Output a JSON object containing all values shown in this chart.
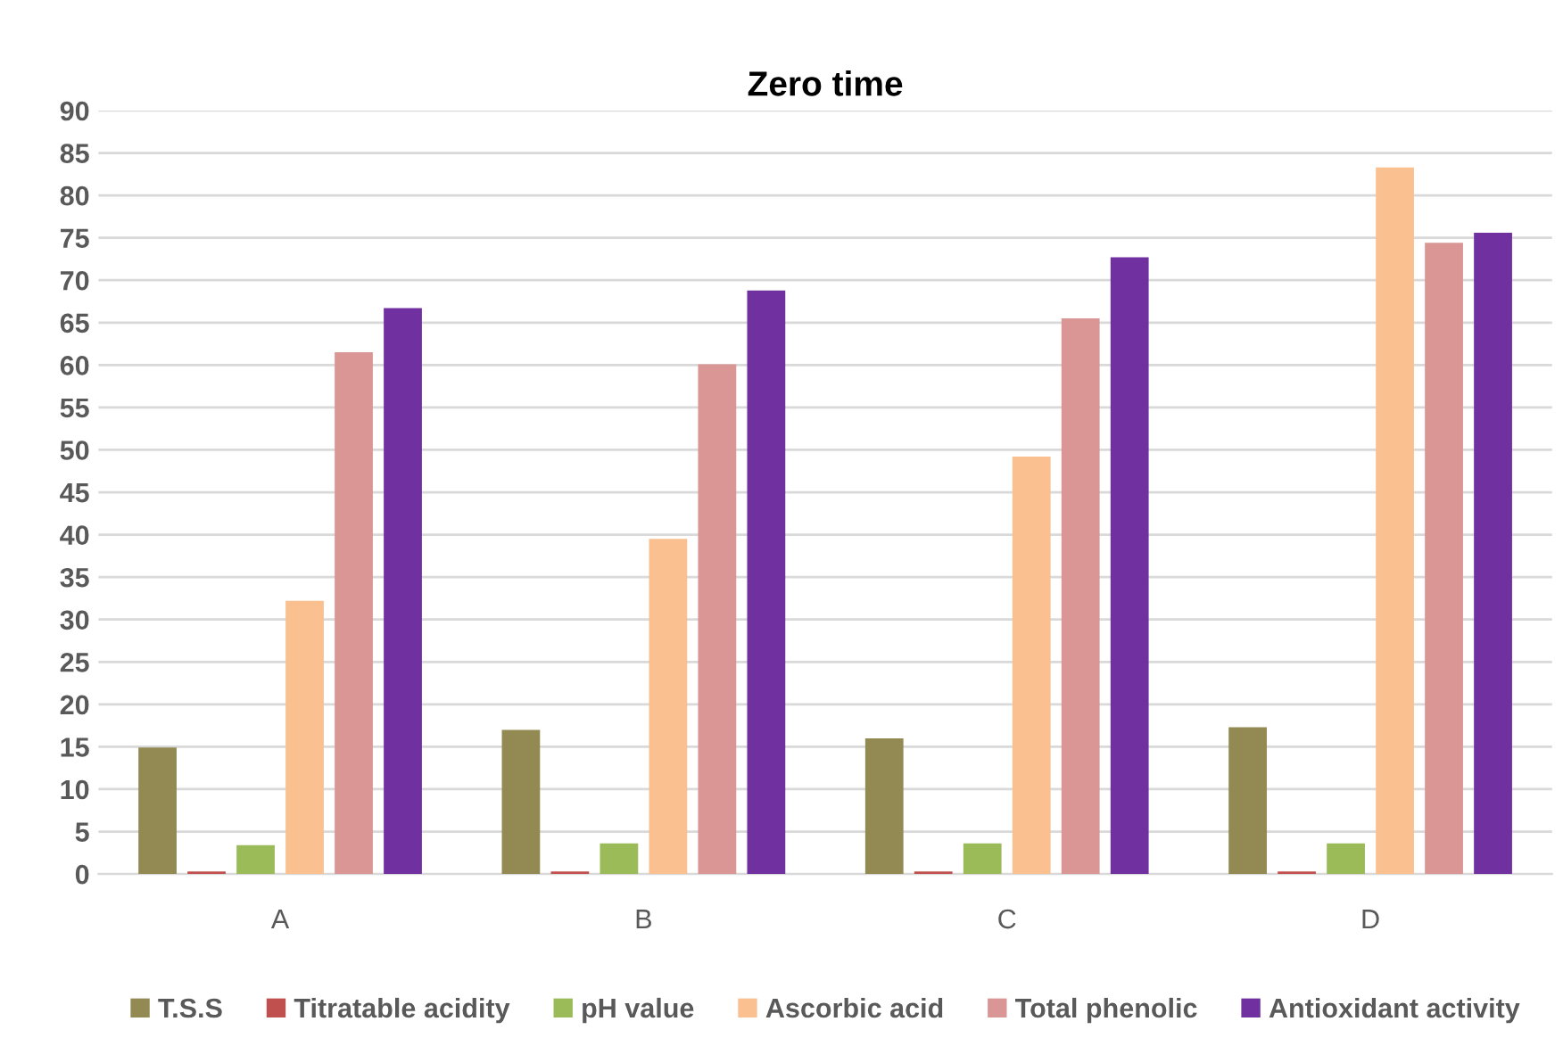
{
  "chart_data": {
    "type": "bar",
    "title": "Zero time",
    "categories": [
      "A",
      "B",
      "C",
      "D"
    ],
    "series": [
      {
        "name": "T.S.S",
        "color": "#938953",
        "values": [
          14.9,
          17.0,
          16.0,
          17.3
        ]
      },
      {
        "name": "Titratable acidity",
        "color": "#c0504d",
        "values": [
          0.3,
          0.3,
          0.3,
          0.3
        ]
      },
      {
        "name": "pH value",
        "color": "#9bbb59",
        "values": [
          3.4,
          3.6,
          3.6,
          3.6
        ]
      },
      {
        "name": "Ascorbic acid",
        "color": "#fac090",
        "values": [
          32.2,
          39.5,
          49.2,
          83.3
        ]
      },
      {
        "name": "Total phenolic",
        "color": "#d99694",
        "values": [
          61.5,
          60.1,
          65.5,
          74.4
        ]
      },
      {
        "name": "Antioxidant activity",
        "color": "#7030a0",
        "values": [
          66.7,
          68.8,
          72.7,
          75.6
        ]
      }
    ],
    "ylim": [
      0,
      90
    ],
    "yticks": [
      0,
      5,
      10,
      15,
      20,
      25,
      30,
      35,
      40,
      45,
      50,
      55,
      60,
      65,
      70,
      75,
      80,
      85,
      90
    ],
    "grid": "y",
    "legend": "bottom"
  }
}
